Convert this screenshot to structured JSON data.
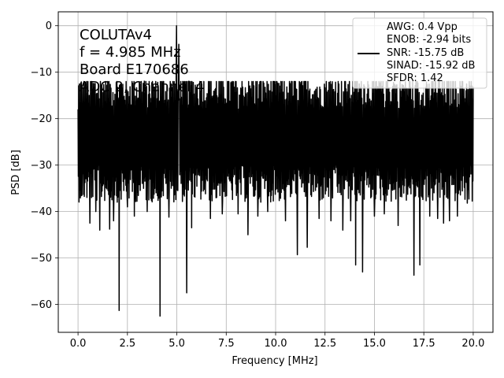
{
  "chart_data": {
    "type": "line",
    "title": "",
    "xlabel": "Frequency [MHz]",
    "ylabel": "PSD [dB]",
    "xlim": [
      -1.0,
      21.0
    ],
    "ylim": [
      -66,
      3
    ],
    "xticks": [
      0.0,
      2.5,
      5.0,
      7.5,
      10.0,
      12.5,
      15.0,
      17.5,
      20.0
    ],
    "xtick_labels": [
      "0.0",
      "2.5",
      "5.0",
      "7.5",
      "10.0",
      "12.5",
      "15.0",
      "17.5",
      "20.0"
    ],
    "yticks": [
      0,
      -10,
      -20,
      -30,
      -40,
      -50,
      -60
    ],
    "ytick_labels": [
      "0",
      "−10",
      "−20",
      "−30",
      "−40",
      "−50",
      "−60"
    ],
    "grid": true,
    "series": [
      {
        "color": "#000000",
        "noise_floor_db": -24,
        "noise_band_db": [
          -36,
          -12
        ],
        "peaks": [
          {
            "x": 4.985,
            "y": 0
          },
          {
            "x": 5.1,
            "y": -4
          }
        ],
        "dips": [
          {
            "x": 0.2,
            "y": -36.5
          },
          {
            "x": 0.6,
            "y": -42.5
          },
          {
            "x": 0.9,
            "y": -40
          },
          {
            "x": 1.1,
            "y": -44
          },
          {
            "x": 1.6,
            "y": -43.8
          },
          {
            "x": 1.8,
            "y": -42
          },
          {
            "x": 2.08,
            "y": -61.3
          },
          {
            "x": 2.5,
            "y": -39
          },
          {
            "x": 2.85,
            "y": -41
          },
          {
            "x": 3.5,
            "y": -40
          },
          {
            "x": 4.15,
            "y": -62.5
          },
          {
            "x": 4.6,
            "y": -41.2
          },
          {
            "x": 5.5,
            "y": -57.5
          },
          {
            "x": 5.75,
            "y": -43.5
          },
          {
            "x": 6.7,
            "y": -41.5
          },
          {
            "x": 7.3,
            "y": -40.5
          },
          {
            "x": 8.1,
            "y": -40.5
          },
          {
            "x": 8.6,
            "y": -45
          },
          {
            "x": 9.1,
            "y": -41
          },
          {
            "x": 9.6,
            "y": -40
          },
          {
            "x": 10.5,
            "y": -42
          },
          {
            "x": 11.1,
            "y": -49.3
          },
          {
            "x": 11.6,
            "y": -47.7
          },
          {
            "x": 12.2,
            "y": -41.5
          },
          {
            "x": 12.8,
            "y": -42
          },
          {
            "x": 13.4,
            "y": -44
          },
          {
            "x": 13.8,
            "y": -42
          },
          {
            "x": 14.05,
            "y": -51.5
          },
          {
            "x": 14.4,
            "y": -53
          },
          {
            "x": 15.0,
            "y": -41
          },
          {
            "x": 15.5,
            "y": -40.5
          },
          {
            "x": 16.2,
            "y": -43
          },
          {
            "x": 17.0,
            "y": -53.7
          },
          {
            "x": 17.3,
            "y": -51.5
          },
          {
            "x": 17.8,
            "y": -41
          },
          {
            "x": 18.2,
            "y": -41.5
          },
          {
            "x": 18.5,
            "y": -42.5
          },
          {
            "x": 18.8,
            "y": -42
          },
          {
            "x": 19.2,
            "y": -41
          },
          {
            "x": 19.7,
            "y": -38.2
          }
        ]
      }
    ],
    "annotation": {
      "lines": [
        "COLUTAv4",
        "f = 4.985 MHz",
        "Board E170686",
        "ADC 2, Channel 4"
      ]
    },
    "legend": {
      "position": "top-right",
      "entries": [
        "AWG: 0.4 Vpp",
        "ENOB: -2.94 bits",
        "SNR: -15.75 dB",
        "SINAD: -15.92 dB",
        "SFDR: 1.42"
      ]
    }
  }
}
